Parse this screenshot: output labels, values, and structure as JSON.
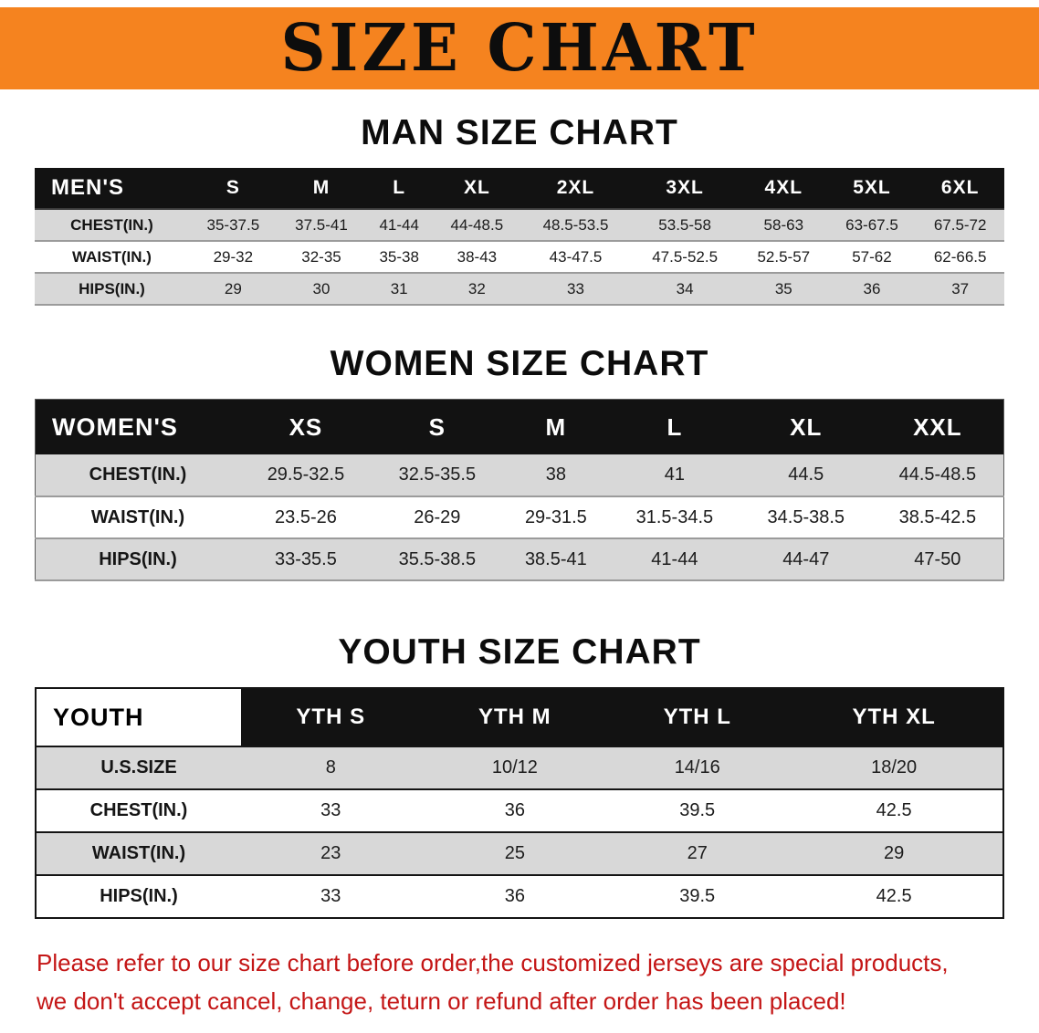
{
  "banner": {
    "title": "SIZE CHART"
  },
  "colors": {
    "banner_bg": "#f5831f",
    "header_bg": "#121212",
    "stripe": "#d8d8d8",
    "note_red": "#c41616"
  },
  "sections": [
    {
      "id": "men",
      "heading": "MAN SIZE CHART",
      "table": {
        "header": [
          "MEN'S",
          "S",
          "M",
          "L",
          "XL",
          "2XL",
          "3XL",
          "4XL",
          "5XL",
          "6XL"
        ],
        "rows": [
          [
            "CHEST(IN.)",
            "35-37.5",
            "37.5-41",
            "41-44",
            "44-48.5",
            "48.5-53.5",
            "53.5-58",
            "58-63",
            "63-67.5",
            "67.5-72"
          ],
          [
            "WAIST(IN.)",
            "29-32",
            "32-35",
            "35-38",
            "38-43",
            "43-47.5",
            "47.5-52.5",
            "52.5-57",
            "57-62",
            "62-66.5"
          ],
          [
            "HIPS(IN.)",
            "29",
            "30",
            "31",
            "32",
            "33",
            "34",
            "35",
            "36",
            "37"
          ]
        ]
      }
    },
    {
      "id": "women",
      "heading": "WOMEN SIZE CHART",
      "table": {
        "header": [
          "WOMEN'S",
          "XS",
          "S",
          "M",
          "L",
          "XL",
          "XXL"
        ],
        "rows": [
          [
            "CHEST(IN.)",
            "29.5-32.5",
            "32.5-35.5",
            "38",
            "41",
            "44.5",
            "44.5-48.5"
          ],
          [
            "WAIST(IN.)",
            "23.5-26",
            "26-29",
            "29-31.5",
            "31.5-34.5",
            "34.5-38.5",
            "38.5-42.5"
          ],
          [
            "HIPS(IN.)",
            "33-35.5",
            "35.5-38.5",
            "38.5-41",
            "41-44",
            "44-47",
            "47-50"
          ]
        ]
      }
    },
    {
      "id": "youth",
      "heading": "YOUTH SIZE CHART",
      "table": {
        "header": [
          "YOUTH",
          "YTH S",
          "YTH M",
          "YTH L",
          "YTH XL"
        ],
        "rows": [
          [
            "U.S.SIZE",
            "8",
            "10/12",
            "14/16",
            "18/20"
          ],
          [
            "CHEST(IN.)",
            "33",
            "36",
            "39.5",
            "42.5"
          ],
          [
            "WAIST(IN.)",
            "23",
            "25",
            "27",
            "29"
          ],
          [
            "HIPS(IN.)",
            "33",
            "36",
            "39.5",
            "42.5"
          ]
        ]
      }
    }
  ],
  "footnote": {
    "line1": "Please refer to our size chart before order,the customized jerseys are special products,",
    "line2": "we don't accept cancel, change, teturn or refund after order has been placed!"
  }
}
